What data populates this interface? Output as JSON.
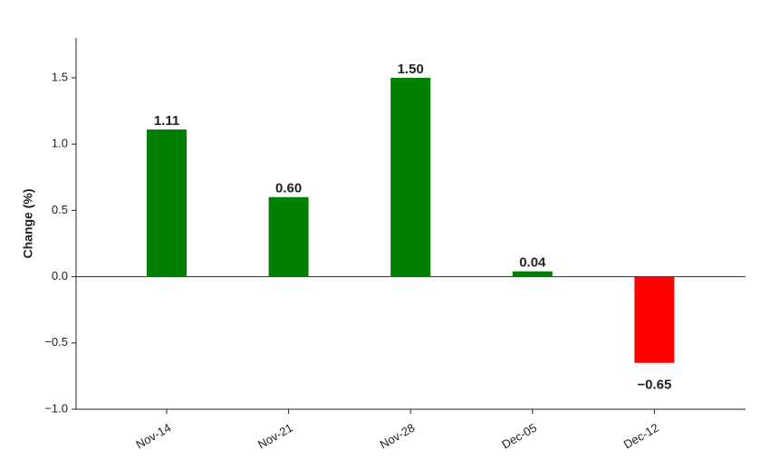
{
  "chart_data": {
    "type": "bar",
    "ylabel": "Change (%)",
    "categories": [
      "Nov-14",
      "Nov-21",
      "Nov-28",
      "Dec-05",
      "Dec-12"
    ],
    "values": [
      1.11,
      0.6,
      1.5,
      0.04,
      -0.65
    ],
    "value_labels": [
      "1.11",
      "0.60",
      "1.50",
      "0.04",
      "−0.65"
    ],
    "colors": [
      "#008000",
      "#008000",
      "#008000",
      "#008000",
      "#ff0000"
    ],
    "ylim": [
      -1.0,
      1.8
    ],
    "yticks": [
      {
        "value": -1.0,
        "label": "−1.0"
      },
      {
        "value": -0.5,
        "label": "−0.5"
      },
      {
        "value": 0,
        "label": "0.0"
      },
      {
        "value": 0.5,
        "label": "0.5"
      },
      {
        "value": 1.0,
        "label": "1.0"
      },
      {
        "value": 1.5,
        "label": "1.5"
      }
    ],
    "grid": false
  }
}
